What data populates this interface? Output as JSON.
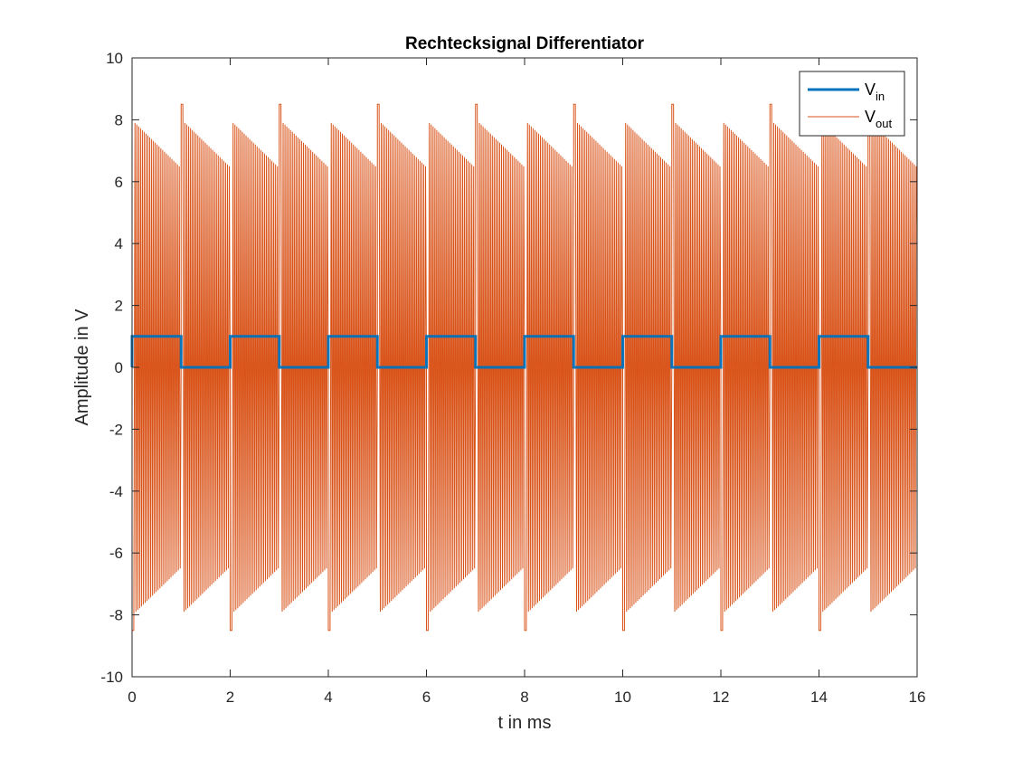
{
  "chart_data": {
    "type": "line",
    "title": "Rechtecksignal Differentiator",
    "xlabel": "t in ms",
    "ylabel": "Amplitude in V",
    "xlim": [
      0,
      16
    ],
    "ylim": [
      -10,
      10
    ],
    "xticks": [
      0,
      2,
      4,
      6,
      8,
      10,
      12,
      14,
      16
    ],
    "yticks": [
      -10,
      -8,
      -6,
      -4,
      -2,
      0,
      2,
      4,
      6,
      8,
      10
    ],
    "xtick_labels": [
      "0",
      "2",
      "4",
      "6",
      "8",
      "10",
      "12",
      "14",
      "16"
    ],
    "ytick_labels": [
      "-10",
      "-8",
      "-6",
      "-4",
      "-2",
      "0",
      "2",
      "4",
      "6",
      "8",
      "10"
    ],
    "grid": false,
    "legend_position": "top-right",
    "series": [
      {
        "name": "V_in",
        "label_main": "V",
        "label_sub": "in",
        "color": "#0072BD",
        "kind": "square-wave",
        "period_ms": 2,
        "high_v": 1,
        "low_v": 0,
        "t_start_ms": 0,
        "t_end_ms": 16
      },
      {
        "name": "V_out",
        "label_main": "V",
        "label_sub": "out",
        "color": "#D95319",
        "kind": "ringing-differentiator",
        "edge_spike_v": 8.5,
        "ringing_start_amplitude_v": 7.9,
        "ringing_end_amplitude_v": 6.5,
        "oscillations_per_half_period": 25,
        "half_period_ms": 1,
        "t_start_ms": 0,
        "t_end_ms": 16
      }
    ]
  }
}
